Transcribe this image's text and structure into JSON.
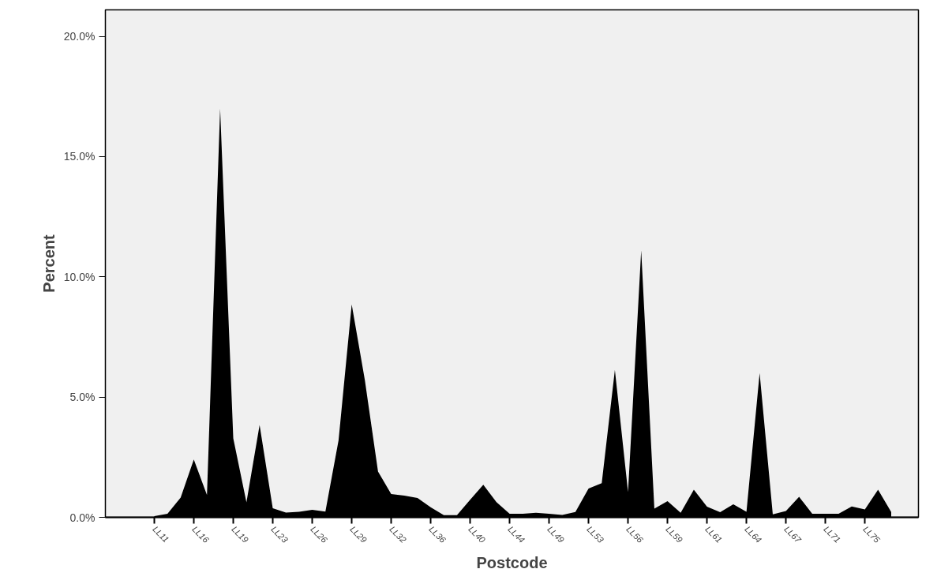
{
  "chart_data": {
    "type": "area",
    "xlabel": "Postcode",
    "ylabel": "Percent",
    "categories": [
      "LL11",
      null,
      null,
      "LL16",
      null,
      null,
      "LL19",
      null,
      null,
      "LL23",
      null,
      null,
      "LL26",
      null,
      null,
      "LL29",
      null,
      null,
      "LL32",
      null,
      null,
      "LL36",
      null,
      null,
      "LL40",
      null,
      null,
      "LL44",
      null,
      null,
      "LL49",
      null,
      null,
      "LL53",
      null,
      null,
      "LL56",
      null,
      null,
      "LL59",
      null,
      null,
      "LL61",
      null,
      null,
      "LL64",
      null,
      null,
      "LL67",
      null,
      null,
      "LL71",
      null,
      null,
      "LL75",
      null,
      null
    ],
    "values": [
      0.05,
      0.15,
      0.82,
      2.4,
      0.93,
      17.0,
      3.28,
      0.62,
      3.84,
      0.38,
      0.2,
      0.23,
      0.31,
      0.24,
      3.2,
      8.85,
      5.7,
      1.9,
      0.97,
      0.9,
      0.8,
      0.42,
      0.09,
      0.09,
      0.73,
      1.35,
      0.63,
      0.15,
      0.15,
      0.19,
      0.15,
      0.1,
      0.22,
      1.2,
      1.42,
      6.13,
      1.05,
      11.1,
      0.36,
      0.67,
      0.19,
      1.15,
      0.44,
      0.21,
      0.54,
      0.23,
      6.0,
      0.12,
      0.26,
      0.85,
      0.15,
      0.15,
      0.15,
      0.45,
      0.33,
      1.15,
      0.22
    ],
    "color": "#000000",
    "ylim": [
      0,
      21.1
    ],
    "yticks": [
      {
        "value": 0,
        "label": "0.0%"
      },
      {
        "value": 5,
        "label": "5.0%"
      },
      {
        "value": 10,
        "label": "10.0%"
      },
      {
        "value": 15,
        "label": "15.0%"
      },
      {
        "value": 20,
        "label": "20.0%"
      }
    ],
    "grid": false
  }
}
